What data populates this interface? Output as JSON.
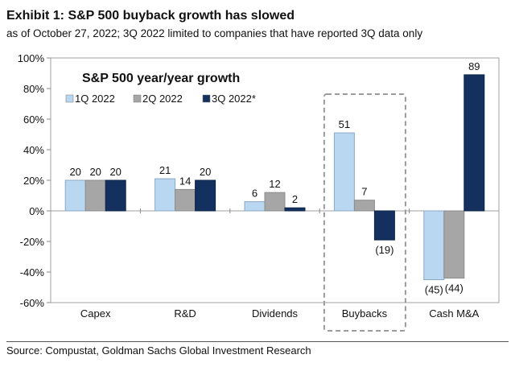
{
  "header": {
    "title": "Exhibit 1: S&P 500 buyback growth has slowed",
    "subtitle": "as of October 27, 2022; 3Q 2022 limited to companies that have reported 3Q data only"
  },
  "source": "Source: Compustat, Goldman Sachs Global Investment Research",
  "chart_data": {
    "type": "bar",
    "title": "S&P 500 year/year growth",
    "categories": [
      "Capex",
      "R&D",
      "Dividends",
      "Buybacks",
      "Cash M&A"
    ],
    "series": [
      {
        "name": "1Q 2022",
        "values": [
          20,
          21,
          6,
          51,
          -45
        ],
        "labels": [
          "20",
          "21",
          "6",
          "51",
          "(45)"
        ],
        "color": "#b9d7f0"
      },
      {
        "name": "2Q 2022",
        "values": [
          20,
          14,
          12,
          7,
          -44
        ],
        "labels": [
          "20",
          "14",
          "12",
          "7",
          "(44)"
        ],
        "color": "#a6a6a6"
      },
      {
        "name": "3Q 2022*",
        "values": [
          20,
          20,
          2,
          -19,
          89
        ],
        "labels": [
          "20",
          "20",
          "2",
          "(19)",
          "89"
        ],
        "color": "#13305e"
      }
    ],
    "ylim": [
      -60,
      100
    ],
    "yticks": [
      -60,
      -40,
      -20,
      0,
      20,
      40,
      60,
      80,
      100
    ],
    "ytick_labels": [
      "-60%",
      "-40%",
      "-20%",
      "0%",
      "20%",
      "40%",
      "60%",
      "80%",
      "100%"
    ],
    "highlighted_category": "Buybacks",
    "legend_position": "top-left",
    "grid": false
  }
}
